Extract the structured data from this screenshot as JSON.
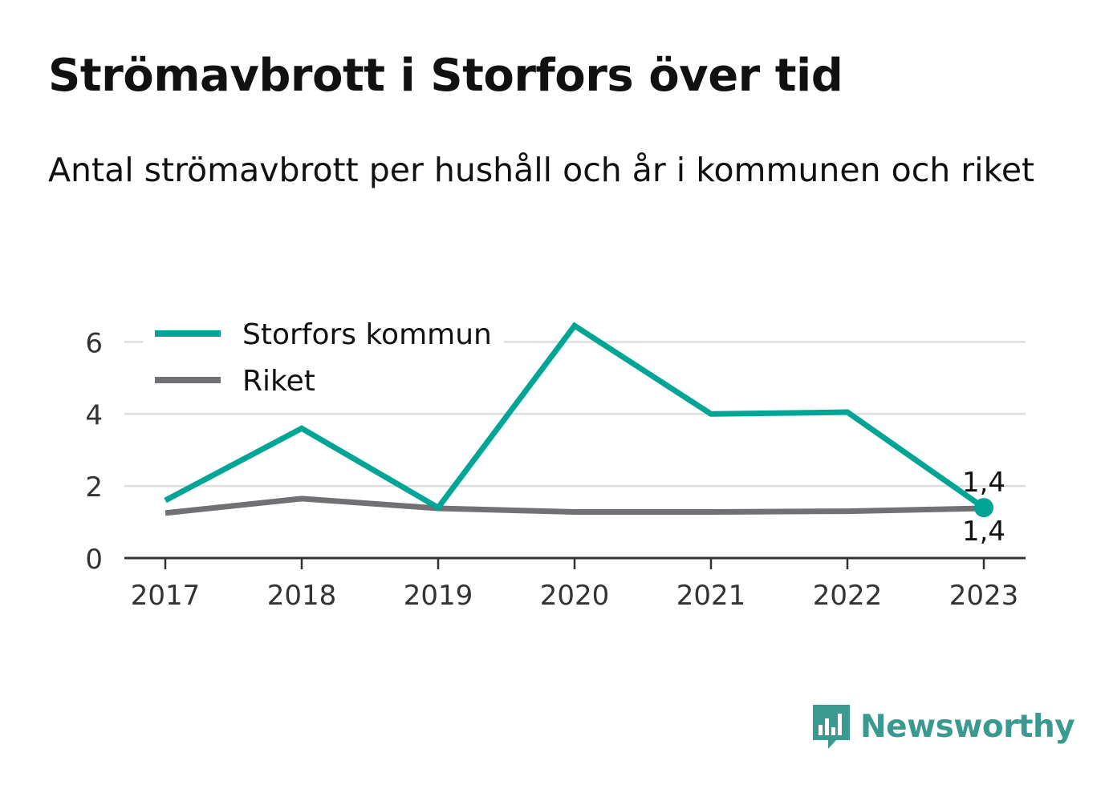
{
  "header": {
    "title": "Strömavbrott i Storfors över tid",
    "subtitle": "Antal strömavbrott per hushåll och år i kommunen och riket"
  },
  "brand": {
    "name": "Newsworthy",
    "color": "#3a9a8f",
    "icon": "chat-bar-chart-icon"
  },
  "chart_data": {
    "type": "line",
    "title": "Strömavbrott i Storfors över tid",
    "subtitle": "Antal strömavbrott per hushåll och år i kommunen och riket",
    "x": [
      "2017",
      "2018",
      "2019",
      "2020",
      "2021",
      "2022",
      "2023"
    ],
    "series": [
      {
        "name": "Storfors kommun",
        "color": "#00a596",
        "values": [
          1.6,
          3.6,
          1.4,
          6.45,
          4.0,
          4.05,
          1.4
        ]
      },
      {
        "name": "Riket",
        "color": "#717075",
        "values": [
          1.25,
          1.65,
          1.38,
          1.28,
          1.28,
          1.3,
          1.38
        ]
      }
    ],
    "ylim": [
      0,
      6.7
    ],
    "yticks": [
      0,
      2,
      4,
      6
    ],
    "grid": true,
    "legend": "top-left",
    "annotations": [
      {
        "series": "Storfors kommun",
        "x": "2023",
        "label": "1,4",
        "position": "above"
      },
      {
        "series": "Riket",
        "x": "2023",
        "label": "1,4",
        "position": "below"
      }
    ]
  }
}
